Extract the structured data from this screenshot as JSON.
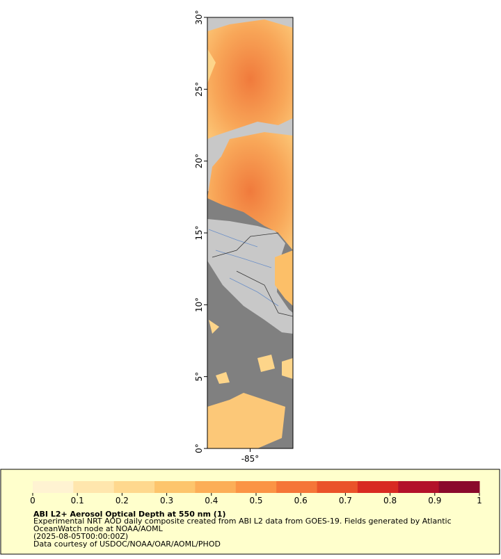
{
  "map": {
    "ylim": [
      0,
      30
    ],
    "yticks": [
      {
        "value": 0,
        "label": "0°"
      },
      {
        "value": 5,
        "label": "5°"
      },
      {
        "value": 10,
        "label": "10°"
      },
      {
        "value": 15,
        "label": "15°"
      },
      {
        "value": 20,
        "label": "20°"
      },
      {
        "value": 25,
        "label": "25°"
      },
      {
        "value": 30,
        "label": "30°"
      }
    ],
    "xlim": [
      -88,
      -82
    ],
    "xticks": [
      {
        "value": -85,
        "label": "-85°"
      }
    ]
  },
  "colorbar": {
    "range": [
      0,
      1
    ],
    "ticks": [
      0,
      0.1,
      0.2,
      0.3,
      0.4,
      0.5,
      0.6,
      0.7,
      0.8,
      0.9,
      1
    ],
    "colors": [
      "#fff3d2",
      "#ffe6ad",
      "#fed88e",
      "#fdc56c",
      "#fcae57",
      "#fb9445",
      "#f57638",
      "#ea532a",
      "#d82a22",
      "#b3122a",
      "#8a0a2c"
    ]
  },
  "caption": {
    "title": "ABI L2+ Aerosol Optical Depth at 550 nm (1)",
    "lines": [
      "Experimental NRT AOD daily composite created from ABI L2 data from GOES-19. Fields generated by Atlantic",
      "OceanWatch node at NOAA/AOML",
      "(2025-08-05T00:00:00Z)",
      "Data courtesy of USDOC/NOAA/OAR/AOML/PHOD"
    ]
  }
}
